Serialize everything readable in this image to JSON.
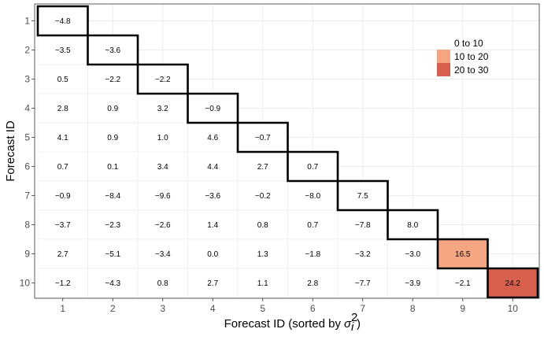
{
  "chart_data": {
    "type": "heatmap",
    "title": "",
    "xlabel": "Forecast ID (sorted by",
    "xlabel_symbol": "σ",
    "xlabel_sub": "i",
    "xlabel_sup": "2",
    "xlabel_suffix": ")",
    "ylabel": "Forecast ID",
    "x_ticks": [
      "1",
      "2",
      "3",
      "4",
      "5",
      "6",
      "7",
      "8",
      "9",
      "10"
    ],
    "y_ticks": [
      "1",
      "2",
      "3",
      "4",
      "5",
      "6",
      "7",
      "8",
      "9",
      "10"
    ],
    "rows": [
      {
        "row": 1,
        "values": [
          "−4.8"
        ]
      },
      {
        "row": 2,
        "values": [
          "−3.5",
          "−3.6"
        ]
      },
      {
        "row": 3,
        "values": [
          "0.5",
          "−2.2",
          "−2.2"
        ]
      },
      {
        "row": 4,
        "values": [
          "2.8",
          "0.9",
          "3.2",
          "−0.9"
        ]
      },
      {
        "row": 5,
        "values": [
          "4.1",
          "0.9",
          "1.0",
          "4.6",
          "−0.7"
        ]
      },
      {
        "row": 6,
        "values": [
          "0.7",
          "0.1",
          "3.4",
          "4.4",
          "2.7",
          "0.7"
        ]
      },
      {
        "row": 7,
        "values": [
          "−0.9",
          "−8.4",
          "−9.6",
          "−3.6",
          "−0.2",
          "−8.0",
          "7.5"
        ]
      },
      {
        "row": 8,
        "values": [
          "−3.7",
          "−2.3",
          "−2.6",
          "1.4",
          "0.8",
          "0.7",
          "−7.8",
          "8.0"
        ]
      },
      {
        "row": 9,
        "values": [
          "2.7",
          "−5.1",
          "−3.4",
          "0.0",
          "1.3",
          "−1.8",
          "−3.2",
          "−3.0",
          "16.5"
        ]
      },
      {
        "row": 10,
        "values": [
          "−1.2",
          "−4.3",
          "0.8",
          "2.7",
          "1.1",
          "2.8",
          "−7.7",
          "−3.9",
          "−2.1",
          "24.2"
        ]
      }
    ],
    "diagonal_fill": [
      "#ffffff",
      "#ffffff",
      "#ffffff",
      "#ffffff",
      "#ffffff",
      "#ffffff",
      "#ffffff",
      "#ffffff",
      "#f4a582",
      "#d6604d"
    ],
    "legend": {
      "position": "top-right",
      "entries": [
        {
          "label": "0 to 10",
          "color": "#ffffff"
        },
        {
          "label": "10 to 20",
          "color": "#f4a582"
        },
        {
          "label": "20 to 30",
          "color": "#d6604d"
        }
      ]
    },
    "grid": true
  }
}
